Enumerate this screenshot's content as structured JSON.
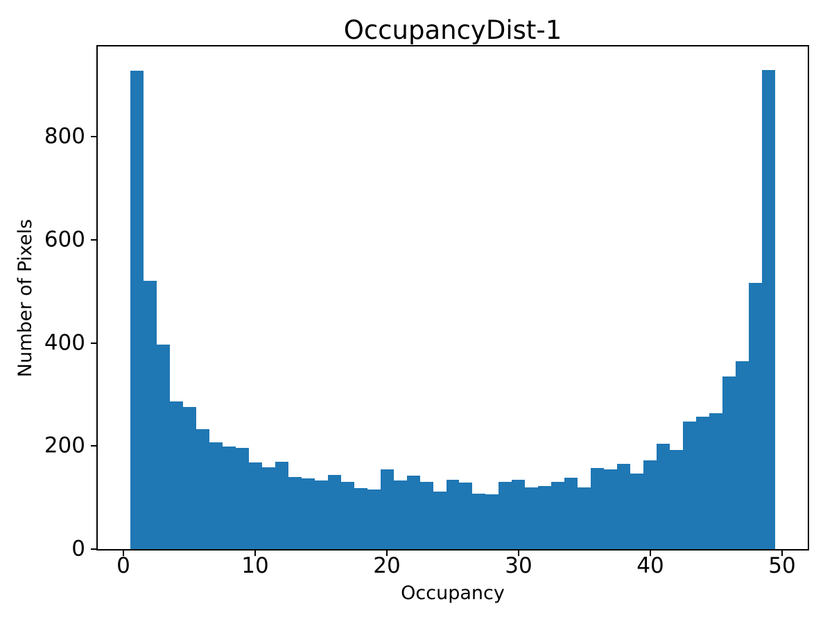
{
  "figure": {
    "title": "OccupancyDist-1",
    "xlabel": "Occupancy",
    "ylabel": "Number of Pixels"
  },
  "chart_data": {
    "type": "bar",
    "subtype": "histogram",
    "title": "OccupancyDist-1",
    "xlabel": "Occupancy",
    "ylabel": "Number of Pixels",
    "bar_color": "#1f77b4",
    "grid": false,
    "legend_position": "none",
    "bin_width": 1,
    "bin_centers": [
      1,
      2,
      3,
      4,
      5,
      6,
      7,
      8,
      9,
      10,
      11,
      12,
      13,
      14,
      15,
      16,
      17,
      18,
      19,
      20,
      21,
      22,
      23,
      24,
      25,
      26,
      27,
      28,
      29,
      30,
      31,
      32,
      33,
      34,
      35,
      36,
      37,
      38,
      39,
      40,
      41,
      42,
      43,
      44,
      45,
      46,
      47,
      48,
      49
    ],
    "values": [
      928,
      520,
      397,
      286,
      276,
      233,
      207,
      199,
      197,
      168,
      159,
      170,
      140,
      137,
      133,
      144,
      131,
      119,
      116,
      154,
      133,
      142,
      131,
      112,
      134,
      129,
      107,
      106,
      130,
      134,
      120,
      122,
      130,
      139,
      120,
      158,
      154,
      166,
      147,
      172,
      205,
      192,
      248,
      257,
      263,
      335,
      364,
      517,
      929
    ],
    "xticks": [
      0,
      10,
      20,
      30,
      40,
      50
    ],
    "yticks": [
      0,
      200,
      400,
      600,
      800
    ],
    "xlim": [
      -1.95,
      51.95
    ],
    "ylim": [
      0,
      975
    ]
  }
}
